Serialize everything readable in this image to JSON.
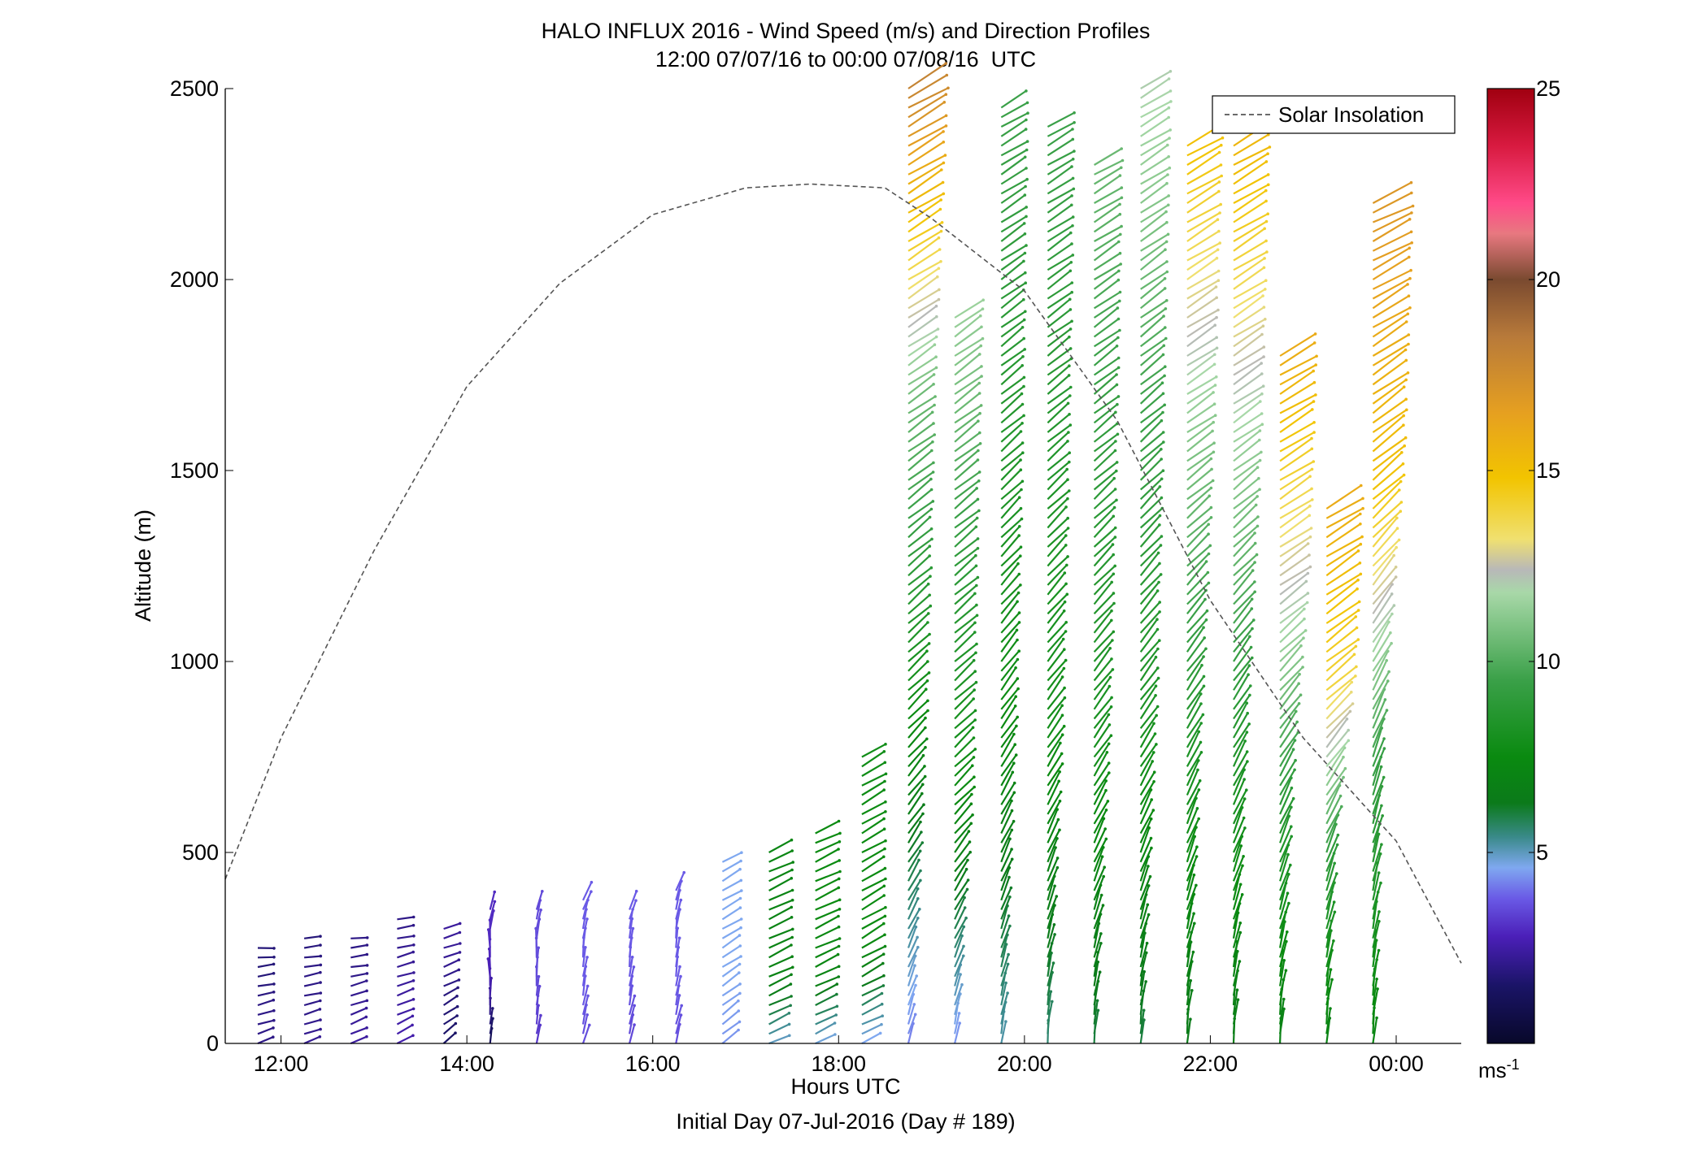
{
  "chart_data": {
    "type": "quiver",
    "title": "HALO INFLUX 2016 - Wind Speed (m/s) and Direction Profiles",
    "subtitle": "12:00 07/07/16 to 00:00 07/08/16  UTC",
    "xlabel": "Hours UTC",
    "xlabel2": "Initial Day 07-Jul-2016 (Day # 189)",
    "ylabel": "Altitude (m)",
    "xlim": [
      11.4,
      24.7
    ],
    "ylim": [
      0,
      2500
    ],
    "x_ticks": [
      12,
      14,
      16,
      18,
      20,
      22,
      24
    ],
    "x_tick_labels": [
      "12:00",
      "14:00",
      "16:00",
      "18:00",
      "20:00",
      "22:00",
      "00:00"
    ],
    "y_ticks": [
      0,
      500,
      1000,
      1500,
      2000,
      2500
    ],
    "y_tick_labels": [
      "0",
      "500",
      "1000",
      "1500",
      "2000",
      "2500"
    ],
    "grid": false,
    "legend": {
      "position": "top-right",
      "entries": [
        {
          "name": "Solar Insolation",
          "style": "dashed",
          "color": "#555555"
        }
      ]
    },
    "colorbar": {
      "range": [
        0,
        25
      ],
      "ticks": [
        5,
        10,
        15,
        20,
        25
      ],
      "tick_labels": [
        "5",
        "10",
        "15",
        "20",
        "25"
      ],
      "unit_label": "ms",
      "unit_exponent": "-1",
      "stops": [
        {
          "v": 0,
          "color": "#08082a"
        },
        {
          "v": 1.5,
          "color": "#1a1466"
        },
        {
          "v": 2.8,
          "color": "#4b1fb8"
        },
        {
          "v": 3.8,
          "color": "#6a5ae6"
        },
        {
          "v": 4.6,
          "color": "#7fa8f0"
        },
        {
          "v": 5.4,
          "color": "#3a8a8a"
        },
        {
          "v": 6.3,
          "color": "#0b7a1a"
        },
        {
          "v": 7.5,
          "color": "#0a8a10"
        },
        {
          "v": 9.5,
          "color": "#3aa048"
        },
        {
          "v": 11.8,
          "color": "#a8d8a8"
        },
        {
          "v": 12.4,
          "color": "#b8b8b8"
        },
        {
          "v": 13.2,
          "color": "#f0e070"
        },
        {
          "v": 14.8,
          "color": "#f2c400"
        },
        {
          "v": 16.5,
          "color": "#e6a020"
        },
        {
          "v": 18.5,
          "color": "#b87a3a"
        },
        {
          "v": 20.0,
          "color": "#7a4a30"
        },
        {
          "v": 21.2,
          "color": "#e87880"
        },
        {
          "v": 22.0,
          "color": "#ff4a88"
        },
        {
          "v": 23.5,
          "color": "#d81a40"
        },
        {
          "v": 25,
          "color": "#a00010"
        }
      ]
    },
    "solar_insolation": {
      "x_hours": [
        11.4,
        12.0,
        13.0,
        14.0,
        15.0,
        16.0,
        17.0,
        17.7,
        18.5,
        19.0,
        20.0,
        21.0,
        22.0,
        23.0,
        24.0,
        24.7
      ],
      "altitude_equiv": [
        430,
        800,
        1290,
        1720,
        1990,
        2170,
        2240,
        2250,
        2240,
        2160,
        1970,
        1630,
        1160,
        800,
        530,
        210
      ]
    },
    "wind_profiles": [
      {
        "time": 11.75,
        "top": 260,
        "speed": [
          2.0,
          2.0,
          1.8,
          1.8
        ],
        "dir_from": [
          250,
          255,
          260,
          270
        ]
      },
      {
        "time": 12.25,
        "top": 280,
        "speed": [
          2.2,
          2.0,
          2.0,
          1.8
        ],
        "dir_from": [
          250,
          255,
          260,
          265
        ]
      },
      {
        "time": 12.75,
        "top": 290,
        "speed": [
          2.4,
          2.2,
          2.0,
          2.0
        ],
        "dir_from": [
          245,
          250,
          260,
          265
        ]
      },
      {
        "time": 13.25,
        "top": 340,
        "speed": [
          2.6,
          2.4,
          2.2,
          2.0
        ],
        "dir_from": [
          240,
          250,
          255,
          265
        ]
      },
      {
        "time": 13.75,
        "top": 320,
        "speed": [
          1.5,
          1.8,
          2.2,
          2.4
        ],
        "dir_from": [
          230,
          240,
          250,
          255
        ]
      },
      {
        "time": 14.25,
        "top": 360,
        "speed": [
          1.2,
          2.5,
          3.0,
          3.0
        ],
        "dir_from": [
          190,
          180,
          175,
          200
        ]
      },
      {
        "time": 14.75,
        "top": 360,
        "speed": [
          3.2,
          3.5,
          3.6,
          3.5
        ],
        "dir_from": [
          190,
          185,
          180,
          200
        ]
      },
      {
        "time": 15.25,
        "top": 380,
        "speed": [
          3.6,
          3.8,
          3.8,
          3.8
        ],
        "dir_from": [
          195,
          190,
          185,
          205
        ]
      },
      {
        "time": 15.75,
        "top": 360,
        "speed": [
          3.5,
          3.7,
          3.8,
          3.8
        ],
        "dir_from": [
          195,
          190,
          185,
          200
        ]
      },
      {
        "time": 16.25,
        "top": 400,
        "speed": [
          3.6,
          3.8,
          3.8,
          3.8
        ],
        "dir_from": [
          195,
          190,
          185,
          200
        ]
      },
      {
        "time": 16.75,
        "top": 480,
        "speed": [
          4.4,
          4.6,
          4.6,
          4.6
        ],
        "dir_from": [
          230,
          235,
          240,
          240
        ]
      },
      {
        "time": 17.25,
        "top": 500,
        "speed": [
          5.0,
          7.0,
          7.0,
          7.2
        ],
        "dir_from": [
          245,
          245,
          245,
          245
        ]
      },
      {
        "time": 17.75,
        "top": 560,
        "speed": [
          4.8,
          7.2,
          7.5,
          7.5
        ],
        "dir_from": [
          245,
          245,
          245,
          245
        ]
      },
      {
        "time": 18.25,
        "top": 760,
        "speed": [
          4.6,
          7.5,
          7.5,
          7.8
        ],
        "dir_from": [
          245,
          240,
          240,
          240
        ]
      },
      {
        "time": 18.75,
        "top": 2500,
        "speed": [
          4.2,
          7.5,
          10.5,
          18.0
        ],
        "dir_from": [
          195,
          225,
          235,
          240
        ]
      },
      {
        "time": 19.25,
        "top": 1900,
        "speed": [
          4.4,
          7.5,
          9.0,
          11.5
        ],
        "dir_from": [
          190,
          225,
          230,
          235
        ]
      },
      {
        "time": 19.75,
        "top": 2450,
        "speed": [
          5.2,
          7.5,
          8.5,
          9.5
        ],
        "dir_from": [
          190,
          215,
          230,
          240
        ]
      },
      {
        "time": 20.25,
        "top": 2400,
        "speed": [
          5.6,
          7.8,
          8.5,
          9.5
        ],
        "dir_from": [
          185,
          215,
          230,
          240
        ]
      },
      {
        "time": 20.75,
        "top": 2300,
        "speed": [
          6.0,
          8.0,
          9.0,
          10.5
        ],
        "dir_from": [
          185,
          215,
          230,
          240
        ]
      },
      {
        "time": 21.25,
        "top": 2500,
        "speed": [
          6.0,
          8.2,
          9.5,
          12.0
        ],
        "dir_from": [
          185,
          215,
          230,
          240
        ]
      },
      {
        "time": 21.75,
        "top": 2350,
        "speed": [
          6.4,
          8.4,
          11.0,
          15.0
        ],
        "dir_from": [
          185,
          210,
          235,
          240
        ]
      },
      {
        "time": 22.25,
        "top": 2350,
        "speed": [
          6.6,
          8.5,
          11.5,
          15.5
        ],
        "dir_from": [
          185,
          210,
          235,
          240
        ]
      },
      {
        "time": 22.75,
        "top": 1800,
        "speed": [
          6.8,
          8.8,
          12.5,
          16.0
        ],
        "dir_from": [
          185,
          205,
          235,
          240
        ]
      },
      {
        "time": 23.25,
        "top": 1400,
        "speed": [
          7.0,
          9.0,
          14.0,
          16.0
        ],
        "dir_from": [
          185,
          200,
          230,
          240
        ]
      },
      {
        "time": 23.75,
        "top": 2200,
        "speed": [
          7.2,
          9.5,
          15.0,
          17.0
        ],
        "dir_from": [
          185,
          200,
          230,
          245
        ]
      }
    ]
  }
}
